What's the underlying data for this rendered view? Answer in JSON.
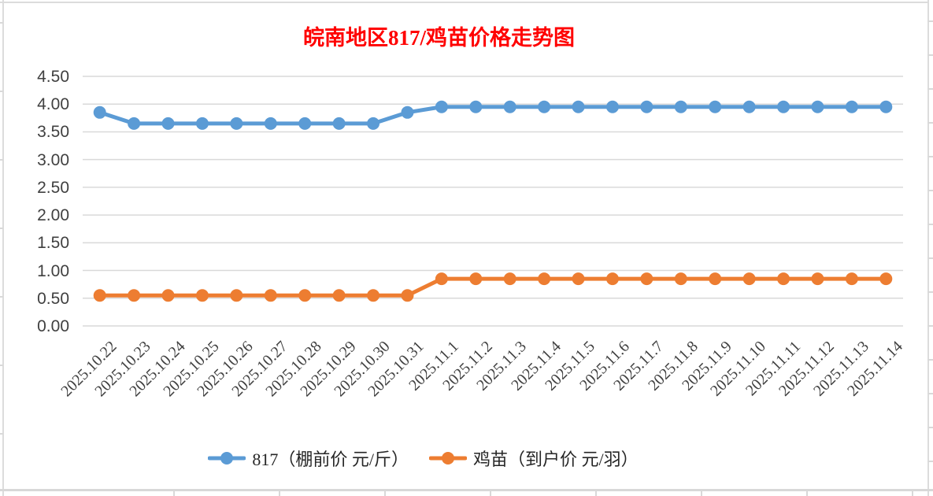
{
  "colors": {
    "title": "#FF0000",
    "series_817": "#5B9BD5",
    "series_chick": "#ED7D31",
    "gridline": "#D9D9D9",
    "axis_text": "#404040",
    "legend_text": "#262626"
  },
  "chart_data": {
    "type": "line",
    "title": "皖南地区817/鸡苗价格走势图",
    "xlabel": "",
    "ylabel": "",
    "ylim": [
      0,
      4.5
    ],
    "y_tick_step": 0.5,
    "y_tick_labels": [
      "0.00",
      "0.50",
      "1.00",
      "1.50",
      "2.00",
      "2.50",
      "3.00",
      "3.50",
      "4.00",
      "4.50"
    ],
    "grid": true,
    "legend_position": "bottom",
    "marker": "circle",
    "categories": [
      "2025.10.22",
      "2025.10.23",
      "2025.10.24",
      "2025.10.25",
      "2025.10.26",
      "2025.10.27",
      "2025.10.28",
      "2025.10.29",
      "2025.10.30",
      "2025.10.31",
      "2025.11.1",
      "2025.11.2",
      "2025.11.3",
      "2025.11.4",
      "2025.11.5",
      "2025.11.6",
      "2025.11.7",
      "2025.11.8",
      "2025.11.9",
      "2025.11.10",
      "2025.11.11",
      "2025.11.12",
      "2025.11.13",
      "2025.11.14"
    ],
    "series": [
      {
        "name": "817（棚前价 元/斤）",
        "color": "#5B9BD5",
        "values": [
          3.85,
          3.65,
          3.65,
          3.65,
          3.65,
          3.65,
          3.65,
          3.65,
          3.65,
          3.85,
          3.95,
          3.95,
          3.95,
          3.95,
          3.95,
          3.95,
          3.95,
          3.95,
          3.95,
          3.95,
          3.95,
          3.95,
          3.95,
          3.95
        ]
      },
      {
        "name": "鸡苗（到户价 元/羽）",
        "color": "#ED7D31",
        "values": [
          0.55,
          0.55,
          0.55,
          0.55,
          0.55,
          0.55,
          0.55,
          0.55,
          0.55,
          0.55,
          0.85,
          0.85,
          0.85,
          0.85,
          0.85,
          0.85,
          0.85,
          0.85,
          0.85,
          0.85,
          0.85,
          0.85,
          0.85,
          0.85
        ]
      }
    ]
  }
}
